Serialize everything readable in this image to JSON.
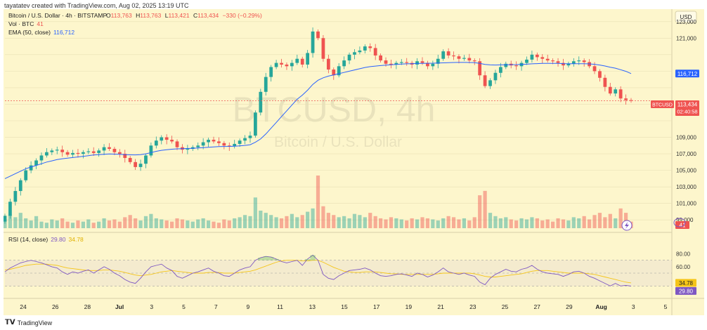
{
  "credit": "tayatatev created with TradingView.com, Aug 02, 2025 13:19 UTC",
  "footer_brand": "TradingView",
  "header": {
    "symbol_line": "Bitcoin / U.S. Dollar · 4h · BITSTAMP",
    "ohlc": {
      "O": "113,763",
      "H": "113,763",
      "L": "113,421",
      "C": "113,434",
      "chg": "−330 (−0.29%)"
    },
    "vol_line": "Vol · BTC",
    "vol_value": "41",
    "ema_line": "EMA (50, close)",
    "ema_value": "116,712"
  },
  "watermark": {
    "title": "BTCUSD, 4h",
    "subtitle": "Bitcoin / U.S. Dollar"
  },
  "currency": "USD",
  "price_badges": {
    "ema": "116,712",
    "symbol": "BTCUSD",
    "last": "113,434",
    "countdown": "02:40:58",
    "volume": "41"
  },
  "rsi": {
    "label": "RSI (14, close)",
    "value": "29.80",
    "ma": "34.78"
  },
  "colors": {
    "up": "#26a69a",
    "down": "#ef5350",
    "ema": "#2962ff",
    "rsi": "#7e57c2",
    "rsi_ma": "#f5c518",
    "background": "#fdf6cc"
  },
  "chart_data": {
    "type": "candlestick",
    "price_axis_ticks": [
      99000,
      101000,
      103000,
      105000,
      107000,
      109000,
      111000,
      113000,
      115000,
      117000,
      119000,
      121000,
      123000
    ],
    "price_axis_labels": [
      "99,000",
      "101,000",
      "103,000",
      "105,000",
      "107,000",
      "109,000",
      "",
      "",
      "",
      "",
      "",
      "121,000",
      "123,000"
    ],
    "price_range": [
      98000,
      124000
    ],
    "x_tick_labels": [
      "24",
      "26",
      "28",
      "Jul",
      "3",
      "5",
      "7",
      "9",
      "11",
      "13",
      "15",
      "17",
      "19",
      "21",
      "23",
      "25",
      "27",
      "29",
      "Aug",
      "3",
      "5"
    ],
    "rsi_levels": [
      80,
      60,
      40,
      20
    ],
    "rsi_level_labels": [
      "80.00",
      "60.00",
      "",
      "20.00"
    ],
    "close_series": [
      99500,
      101200,
      102500,
      103800,
      105000,
      105600,
      106200,
      106800,
      107200,
      107400,
      107500,
      107200,
      106900,
      107100,
      107000,
      107200,
      107300,
      107100,
      107400,
      107800,
      107600,
      107200,
      107000,
      106500,
      106000,
      105400,
      105800,
      106800,
      108000,
      108600,
      109000,
      108700,
      108500,
      107800,
      107500,
      107600,
      107800,
      108000,
      108400,
      108700,
      108500,
      108300,
      108000,
      107900,
      108200,
      108600,
      108900,
      109200,
      112000,
      114500,
      116300,
      117500,
      118000,
      117800,
      117600,
      118000,
      118500,
      117800,
      119200,
      121800,
      121000,
      118500,
      117200,
      116500,
      117600,
      118300,
      119000,
      119300,
      119500,
      120000,
      119800,
      118900,
      118300,
      117900,
      117800,
      118000,
      118100,
      118000,
      117800,
      118200,
      118000,
      117600,
      117900,
      118500,
      119400,
      118900,
      118800,
      118500,
      118600,
      118300,
      118200,
      116500,
      115200,
      115900,
      116800,
      117500,
      117900,
      117700,
      117600,
      118000,
      118400,
      119000,
      118700,
      118500,
      118300,
      118200,
      118000,
      117700,
      117900,
      118200,
      118300,
      118100,
      117600,
      117000,
      116200,
      115100,
      114300,
      114800,
      113700,
      113500,
      113434
    ],
    "ema_series": [
      104000,
      104300,
      104600,
      104900,
      105200,
      105400,
      105600,
      105800,
      106000,
      106150,
      106300,
      106400,
      106480,
      106550,
      106620,
      106700,
      106780,
      106850,
      106900,
      106950,
      106980,
      106960,
      106940,
      106900,
      106880,
      106870,
      106900,
      107000,
      107150,
      107300,
      107420,
      107500,
      107560,
      107600,
      107620,
      107640,
      107670,
      107700,
      107750,
      107800,
      107840,
      107870,
      107890,
      107900,
      107920,
      107960,
      108020,
      108100,
      108400,
      108800,
      109400,
      110100,
      110800,
      111500,
      112200,
      112900,
      113600,
      114100,
      114700,
      115400,
      115900,
      116200,
      116400,
      116550,
      116700,
      116850,
      117000,
      117150,
      117300,
      117450,
      117550,
      117620,
      117680,
      117730,
      117780,
      117820,
      117860,
      117890,
      117910,
      117930,
      117950,
      117960,
      117970,
      117990,
      118010,
      118030,
      118050,
      118060,
      118060,
      118050,
      118030,
      117940,
      117820,
      117760,
      117750,
      117760,
      117780,
      117790,
      117800,
      117820,
      117850,
      117890,
      117920,
      117940,
      117950,
      117950,
      117940,
      117920,
      117910,
      117910,
      117910,
      117900,
      117880,
      117830,
      117750,
      117630,
      117480,
      117360,
      117180,
      116980,
      116712
    ],
    "volume_series": [
      8,
      12,
      10,
      14,
      9,
      7,
      11,
      6,
      5,
      8,
      7,
      9,
      6,
      5,
      7,
      6,
      8,
      5,
      6,
      9,
      7,
      8,
      6,
      10,
      12,
      9,
      7,
      11,
      13,
      9,
      8,
      7,
      6,
      9,
      8,
      7,
      6,
      8,
      9,
      7,
      6,
      5,
      8,
      7,
      9,
      10,
      12,
      11,
      28,
      16,
      14,
      12,
      10,
      9,
      11,
      13,
      10,
      12,
      15,
      18,
      48,
      20,
      14,
      12,
      10,
      11,
      9,
      13,
      12,
      10,
      14,
      11,
      9,
      8,
      10,
      9,
      8,
      7,
      9,
      8,
      10,
      9,
      8,
      7,
      9,
      11,
      10,
      8,
      9,
      7,
      10,
      30,
      34,
      14,
      11,
      9,
      10,
      8,
      7,
      9,
      8,
      10,
      9,
      7,
      8,
      6,
      9,
      8,
      7,
      10,
      9,
      11,
      8,
      12,
      14,
      10,
      13,
      9,
      18,
      14,
      6
    ],
    "rsi_series": [
      52,
      58,
      62,
      66,
      68,
      70,
      68,
      66,
      63,
      60,
      58,
      52,
      48,
      52,
      50,
      53,
      55,
      50,
      55,
      60,
      56,
      50,
      46,
      40,
      36,
      34,
      42,
      52,
      60,
      62,
      64,
      58,
      54,
      45,
      42,
      46,
      50,
      52,
      55,
      58,
      53,
      50,
      46,
      45,
      50,
      55,
      58,
      60,
      70,
      74,
      76,
      75,
      72,
      68,
      66,
      68,
      70,
      62,
      72,
      78,
      70,
      48,
      42,
      40,
      46,
      50,
      54,
      55,
      56,
      58,
      55,
      50,
      46,
      45,
      46,
      48,
      49,
      47,
      45,
      50,
      48,
      44,
      47,
      52,
      58,
      52,
      50,
      48,
      50,
      47,
      45,
      36,
      32,
      42,
      48,
      52,
      56,
      53,
      52,
      56,
      58,
      62,
      56,
      52,
      50,
      49,
      48,
      45,
      48,
      52,
      53,
      50,
      45,
      42,
      38,
      34,
      30,
      34,
      30,
      31,
      29.8
    ],
    "rsi_ma_series": [
      55,
      56,
      58,
      60,
      62,
      63,
      64,
      64,
      64,
      63,
      62,
      60,
      58,
      57,
      56,
      55,
      54,
      54,
      54,
      55,
      55,
      54,
      53,
      51,
      49,
      47,
      46,
      47,
      48,
      50,
      52,
      53,
      54,
      53,
      52,
      51,
      50,
      50,
      50,
      51,
      51,
      51,
      50,
      50,
      50,
      51,
      52,
      53,
      55,
      58,
      61,
      64,
      67,
      69,
      70,
      70,
      70,
      69,
      69,
      70,
      70,
      67,
      63,
      59,
      56,
      53,
      52,
      51,
      51,
      52,
      52,
      52,
      51,
      50,
      49,
      49,
      48,
      48,
      48,
      48,
      48,
      48,
      48,
      49,
      50,
      50,
      50,
      50,
      50,
      50,
      49,
      47,
      45,
      44,
      44,
      45,
      46,
      47,
      48,
      49,
      51,
      53,
      54,
      54,
      54,
      53,
      52,
      51,
      50,
      50,
      50,
      50,
      49,
      48,
      46,
      44,
      42,
      40,
      38,
      36,
      34.78
    ]
  }
}
